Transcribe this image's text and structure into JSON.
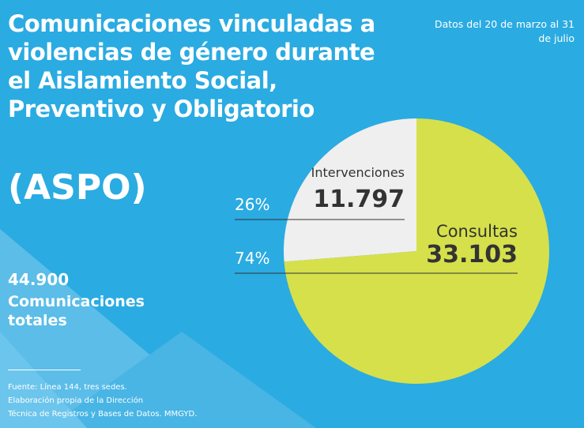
{
  "chart_data": {
    "type": "pie",
    "title": "Comunicaciones vinculadas a violencias de género durante el Aislamiento Social, Preventivo y Obligatorio",
    "title_abbr": "(ASPO)",
    "subtitle": "Datos del 20 de marzo al 31 de julio",
    "categories": [
      "Intervenciones",
      "Consultas"
    ],
    "values": [
      11797,
      33103
    ],
    "value_labels": [
      "11.797",
      "33.103"
    ],
    "percent_labels": [
      "26%",
      "74%"
    ],
    "colors": [
      "#efefef",
      "#d5e04b"
    ],
    "total_label": "44.900",
    "total_caption": "Comunicaciones totales",
    "source": [
      "Fuente: Línea 144, tres sedes.",
      "Elaboración propia de la Dirección",
      "Técnica de Registros y Bases de Datos. MMGYD."
    ]
  }
}
